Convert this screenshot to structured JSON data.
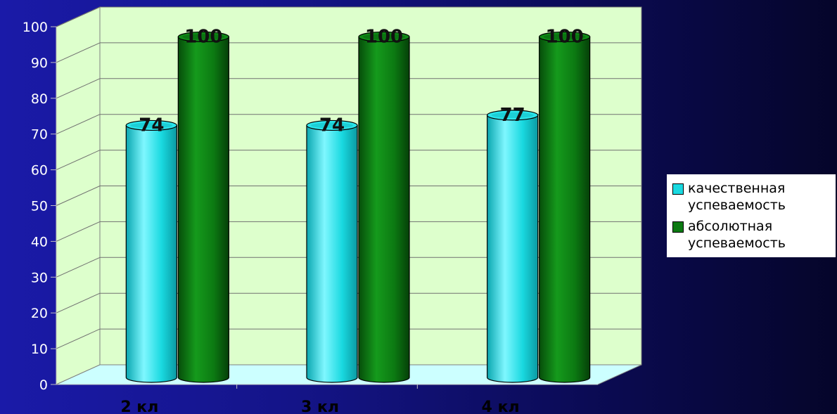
{
  "chart_data": {
    "type": "bar",
    "categories": [
      "2 кл",
      "3 кл",
      "4 кл"
    ],
    "series": [
      {
        "name": "качественная успеваемость",
        "values": [
          74,
          74,
          77
        ],
        "color": "#19d9e0"
      },
      {
        "name": "абсолютная успеваемость",
        "values": [
          100,
          100,
          100
        ],
        "color": "#0c7a12"
      }
    ],
    "yticks": [
      "0",
      "10",
      "20",
      "30",
      "40",
      "50",
      "60",
      "70",
      "80",
      "90",
      "100"
    ],
    "ylim": [
      0,
      100
    ],
    "title": "",
    "xlabel": "",
    "ylabel": "",
    "grid": true,
    "legend_position": "right",
    "style": "3d-cylinder",
    "wall_color": "#ddffcc",
    "floor_color": "#ccffff"
  }
}
